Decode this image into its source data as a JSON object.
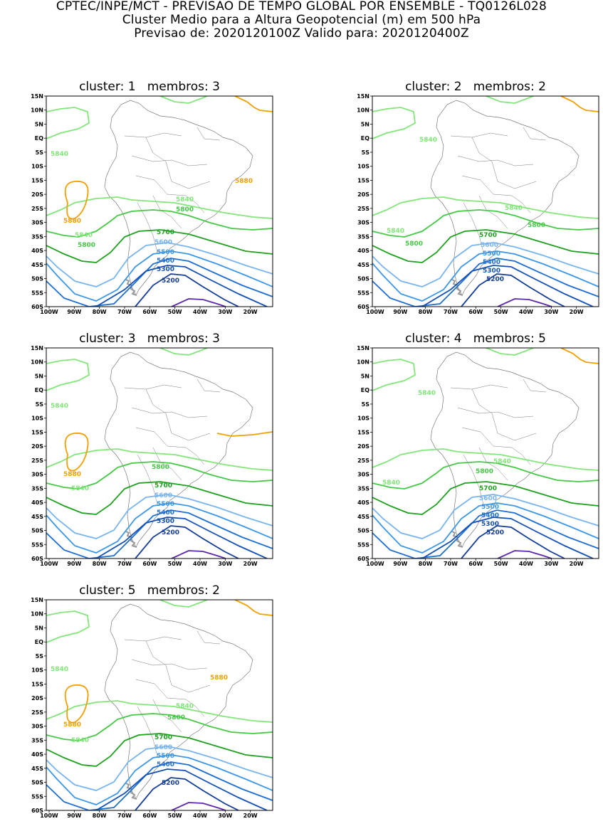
{
  "header": {
    "line1": "CPTEC/INPE/MCT - PREVISAO DE TEMPO GLOBAL POR ENSEMBLE - TQ0126L028",
    "line2": "Cluster Medio para a Altura Geopotencial (m) em 500 hPa",
    "line3": "Previsao de: 2020120100Z    Valido para: 2020120400Z"
  },
  "axes": {
    "lat_labels": [
      "15N",
      "10N",
      "5N",
      "EQ",
      "5S",
      "10S",
      "15S",
      "20S",
      "25S",
      "30S",
      "35S",
      "40S",
      "45S",
      "50S",
      "55S",
      "60S"
    ],
    "lon_labels": [
      "100W",
      "90W",
      "80W",
      "70W",
      "60W",
      "50W",
      "40W",
      "30W",
      "20W"
    ]
  },
  "colors": {
    "c5880": "#f0a000",
    "c5840": "#82e67a",
    "c5800": "#46c846",
    "c5700": "#1ea01e",
    "c5600": "#78b4f0",
    "c5500": "#3c96e6",
    "c5400": "#1e6ed2",
    "c5300": "#1450b4",
    "c5200": "#143c96",
    "c5100": "#5a28aa",
    "land": "#7a7a7a"
  },
  "panels": [
    {
      "title": "cluster: 1   membros: 3",
      "labels": {
        "5840a": "5840",
        "5840b": "5840",
        "5840c": "5840",
        "5880a": "5880",
        "5880b": "5880",
        "5800a": "5800",
        "5800b": "5800",
        "5700": "5700",
        "5600": "5600",
        "5500": "5500",
        "5400": "5400",
        "5300": "5300",
        "5200": "5200"
      }
    },
    {
      "title": "cluster: 2   membros: 2",
      "labels": {
        "5840a": "5840",
        "5840b": "5840",
        "5840c": "5840",
        "5880a": "",
        "5880b": "",
        "5800a": "5800",
        "5800b": "5800",
        "5700": "5700",
        "5600": "5600",
        "5500": "5500",
        "5400": "5400",
        "5300": "5300",
        "5200": "5200"
      }
    },
    {
      "title": "cluster: 3   membros: 3",
      "labels": {
        "5840a": "5840",
        "5840b": "",
        "5840c": "5840",
        "5880a": "5880",
        "5880b": "",
        "5800a": "5800",
        "5800b": "",
        "5700": "5700",
        "5600": "5600",
        "5500": "5500",
        "5400": "5400",
        "5300": "5300",
        "5200": "5200"
      }
    },
    {
      "title": "cluster: 4   membros: 5",
      "labels": {
        "5840a": "5840",
        "5840b": "5840",
        "5840c": "5840",
        "5880a": "",
        "5880b": "",
        "5800a": "5800",
        "5800b": "",
        "5700": "5700",
        "5600": "5600",
        "5500": "5500",
        "5400": "5400",
        "5300": "5300",
        "5200": "5200"
      }
    },
    {
      "title": "cluster: 5   membros: 2",
      "labels": {
        "5840a": "5840",
        "5840b": "5840",
        "5840c": "5840",
        "5880a": "5880",
        "5880b": "5880",
        "5800a": "5800",
        "5800b": "",
        "5700": "5700",
        "5600": "5600",
        "5500": "5500",
        "5400": "5400",
        "5300": "",
        "5200": "5200"
      }
    }
  ]
}
